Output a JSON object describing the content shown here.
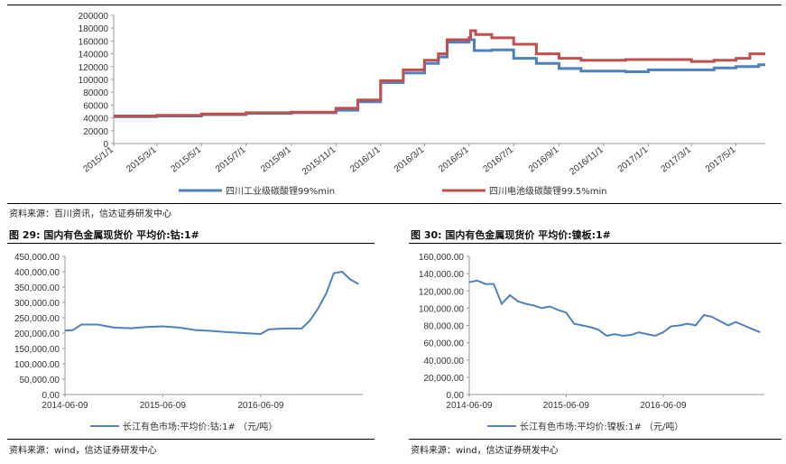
{
  "chart_data": [
    {
      "type": "line",
      "title": "",
      "x": [
        "2015/1/1",
        "2015/3/1",
        "2015/5/1",
        "2015/7/1",
        "2015/9/1",
        "2015/11/1",
        "2016/1/1",
        "2016/3/1",
        "2016/5/1",
        "2016/7/1",
        "2016/9/1",
        "2016/11/1",
        "2017/1/1",
        "2017/3/1",
        "2017/5/1"
      ],
      "y_ticks": [
        "0",
        "20000",
        "40000",
        "60000",
        "80000",
        "100000",
        "120000",
        "140000",
        "160000",
        "180000",
        "200000"
      ],
      "ylim": [
        0,
        200000
      ],
      "series": [
        {
          "name": "四川工业级碳酸锂99%min",
          "color": "#4f81bd",
          "points": [
            [
              "2015/1/1",
              42000
            ],
            [
              "2015/3/1",
              43000
            ],
            [
              "2015/5/1",
              45000
            ],
            [
              "2015/7/1",
              47000
            ],
            [
              "2015/9/1",
              48000
            ],
            [
              "2015/11/1",
              52000
            ],
            [
              "2015/12/1",
              65000
            ],
            [
              "2016/1/1",
              95000
            ],
            [
              "2016/2/1",
              110000
            ],
            [
              "2016/3/1",
              125000
            ],
            [
              "2016/3/20",
              135000
            ],
            [
              "2016/4/1",
              158000
            ],
            [
              "2016/5/1",
              162000
            ],
            [
              "2016/5/8",
              145000
            ],
            [
              "2016/6/1",
              146000
            ],
            [
              "2016/7/1",
              133000
            ],
            [
              "2016/8/1",
              125000
            ],
            [
              "2016/9/1",
              117000
            ],
            [
              "2016/10/1",
              113000
            ],
            [
              "2016/12/1",
              112000
            ],
            [
              "2017/1/1",
              115000
            ],
            [
              "2017/3/1",
              115000
            ],
            [
              "2017/4/1",
              118000
            ],
            [
              "2017/5/1",
              120000
            ],
            [
              "2017/6/1",
              123000
            ]
          ]
        },
        {
          "name": "四川电池级碳酸锂99.5%min",
          "color": "#c0504d",
          "points": [
            [
              "2015/1/1",
              43000
            ],
            [
              "2015/3/1",
              44000
            ],
            [
              "2015/5/1",
              46000
            ],
            [
              "2015/7/1",
              48000
            ],
            [
              "2015/9/1",
              49000
            ],
            [
              "2015/11/1",
              55000
            ],
            [
              "2015/12/1",
              68000
            ],
            [
              "2016/1/1",
              98000
            ],
            [
              "2016/2/1",
              115000
            ],
            [
              "2016/3/1",
              130000
            ],
            [
              "2016/3/20",
              140000
            ],
            [
              "2016/4/1",
              162000
            ],
            [
              "2016/5/1",
              165000
            ],
            [
              "2016/5/3",
              176000
            ],
            [
              "2016/5/10",
              170000
            ],
            [
              "2016/6/1",
              165000
            ],
            [
              "2016/7/1",
              155000
            ],
            [
              "2016/8/1",
              140000
            ],
            [
              "2016/9/1",
              133000
            ],
            [
              "2016/10/1",
              130000
            ],
            [
              "2016/12/1",
              131000
            ],
            [
              "2017/1/1",
              131000
            ],
            [
              "2017/3/1",
              128000
            ],
            [
              "2017/4/1",
              130000
            ],
            [
              "2017/5/1",
              133000
            ],
            [
              "2017/5/20",
              140000
            ],
            [
              "2017/6/1",
              140000
            ]
          ]
        }
      ],
      "source": "资料来源：百川资讯，信达证券研发中心"
    },
    {
      "type": "line",
      "title": "图 29: 国内有色金属现货价 平均价:钴:1#",
      "x_ticks": [
        "2014-06-09",
        "2015-06-09",
        "2016-06-09"
      ],
      "y_ticks": [
        "0.00",
        "50,000.00",
        "100,000.00",
        "150,000.00",
        "200,000.00",
        "250,000.00",
        "300,000.00",
        "350,000.00",
        "400,000.00",
        "450,000.00"
      ],
      "ylim": [
        0,
        450000
      ],
      "series": [
        {
          "name": "长江有色市场:平均价:钴:1# （元/吨）",
          "color": "#4f81bd",
          "points": [
            [
              "2014-06-09",
              208000
            ],
            [
              "2014-07-09",
              210000
            ],
            [
              "2014-08-09",
              228000
            ],
            [
              "2014-10-09",
              228000
            ],
            [
              "2014-12-09",
              218000
            ],
            [
              "2015-02-09",
              216000
            ],
            [
              "2015-04-09",
              220000
            ],
            [
              "2015-06-09",
              222000
            ],
            [
              "2015-08-09",
              218000
            ],
            [
              "2015-10-09",
              210000
            ],
            [
              "2015-12-09",
              207000
            ],
            [
              "2016-02-09",
              203000
            ],
            [
              "2016-04-09",
              200000
            ],
            [
              "2016-06-09",
              197000
            ],
            [
              "2016-07-09",
              212000
            ],
            [
              "2016-09-09",
              215000
            ],
            [
              "2016-11-09",
              215000
            ],
            [
              "2016-12-09",
              240000
            ],
            [
              "2017-01-09",
              280000
            ],
            [
              "2017-02-09",
              330000
            ],
            [
              "2017-03-09",
              395000
            ],
            [
              "2017-04-09",
              400000
            ],
            [
              "2017-05-09",
              375000
            ],
            [
              "2017-06-09",
              360000
            ]
          ]
        }
      ],
      "source": "资料来源：wind，信达证券研发中心"
    },
    {
      "type": "line",
      "title": "图 30: 国内有色金属现货价 平均价:镍板:1#",
      "x_ticks": [
        "2014-06-09",
        "2015-06-09",
        "2016-06-09"
      ],
      "y_ticks": [
        "0.00",
        "20,000.00",
        "40,000.00",
        "60,000.00",
        "80,000.00",
        "100,000.00",
        "120,000.00",
        "140,000.00",
        "160,000.00"
      ],
      "ylim": [
        0,
        160000
      ],
      "series": [
        {
          "name": "长江有色市场:平均价:镍板:1# （元/吨）",
          "color": "#4f81bd",
          "points": [
            [
              "2014-06-09",
              130000
            ],
            [
              "2014-07-09",
              132000
            ],
            [
              "2014-08-09",
              128000
            ],
            [
              "2014-09-09",
              128000
            ],
            [
              "2014-10-09",
              105000
            ],
            [
              "2014-11-09",
              115000
            ],
            [
              "2014-12-09",
              108000
            ],
            [
              "2015-01-09",
              105000
            ],
            [
              "2015-02-09",
              103000
            ],
            [
              "2015-03-09",
              100000
            ],
            [
              "2015-04-09",
              102000
            ],
            [
              "2015-05-09",
              98000
            ],
            [
              "2015-06-09",
              95000
            ],
            [
              "2015-07-09",
              82000
            ],
            [
              "2015-08-09",
              80000
            ],
            [
              "2015-09-09",
              78000
            ],
            [
              "2015-10-09",
              75000
            ],
            [
              "2015-11-09",
              68000
            ],
            [
              "2015-12-09",
              70000
            ],
            [
              "2016-01-09",
              68000
            ],
            [
              "2016-02-09",
              69000
            ],
            [
              "2016-03-09",
              72000
            ],
            [
              "2016-04-09",
              70000
            ],
            [
              "2016-05-09",
              68000
            ],
            [
              "2016-06-09",
              72000
            ],
            [
              "2016-07-09",
              79000
            ],
            [
              "2016-08-09",
              80000
            ],
            [
              "2016-09-09",
              82000
            ],
            [
              "2016-10-09",
              80000
            ],
            [
              "2016-11-09",
              92000
            ],
            [
              "2016-12-09",
              90000
            ],
            [
              "2017-01-09",
              85000
            ],
            [
              "2017-02-09",
              80000
            ],
            [
              "2017-03-09",
              84000
            ],
            [
              "2017-04-09",
              80000
            ],
            [
              "2017-05-09",
              76000
            ],
            [
              "2017-06-09",
              72000
            ]
          ]
        }
      ],
      "source": "资料来源：wind，信达证券研发中心"
    }
  ]
}
